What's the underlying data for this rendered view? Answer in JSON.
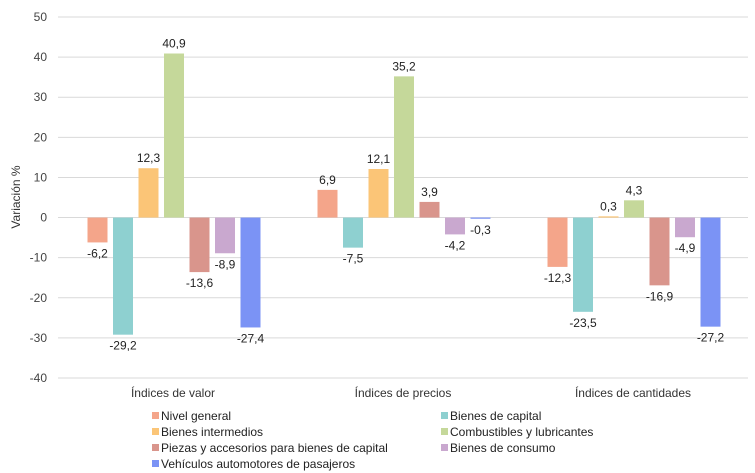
{
  "chart_data": {
    "type": "bar",
    "ylabel": "Variación %",
    "ylim": [
      -40,
      50
    ],
    "yticks": [
      -40,
      -30,
      -20,
      -10,
      0,
      10,
      20,
      30,
      40,
      50
    ],
    "grid": true,
    "legend_position": "bottom",
    "categories": [
      "Índices de valor",
      "Índices de precios",
      "Índices de cantidades"
    ],
    "series": [
      {
        "name": "Nivel general",
        "color": "#f4a58a",
        "values": [
          -6.2,
          6.9,
          -12.3
        ],
        "labels": [
          "-6,2",
          "6,9",
          "-12,3"
        ]
      },
      {
        "name": "Bienes de capital",
        "color": "#8ed0d0",
        "values": [
          -29.2,
          -7.5,
          -23.5
        ],
        "labels": [
          "-29,2",
          "-7,5",
          "-23,5"
        ]
      },
      {
        "name": "Bienes intermedios",
        "color": "#fbc577",
        "values": [
          12.3,
          12.1,
          0.3
        ],
        "labels": [
          "12,3",
          "12,1",
          "0,3"
        ]
      },
      {
        "name": "Combustibles y lubricantes",
        "color": "#c5d89a",
        "values": [
          40.9,
          35.2,
          4.3
        ],
        "labels": [
          "40,9",
          "35,2",
          "4,3"
        ]
      },
      {
        "name": "Piezas y accesorios para bienes de capital",
        "color": "#d9958c",
        "values": [
          -13.6,
          3.9,
          -16.9
        ],
        "labels": [
          "-13,6",
          "3,9",
          "-16,9"
        ]
      },
      {
        "name": "Bienes de consumo",
        "color": "#c9a8cf",
        "values": [
          -8.9,
          -4.2,
          -4.9
        ],
        "labels": [
          "-8,9",
          "-4,2",
          "-4,9"
        ]
      },
      {
        "name": "Vehículos automotores de pasajeros",
        "color": "#7b93f5",
        "values": [
          -27.4,
          -0.3,
          -27.2
        ],
        "labels": [
          "-27,4",
          "-0,3",
          "-27,2"
        ]
      }
    ]
  }
}
